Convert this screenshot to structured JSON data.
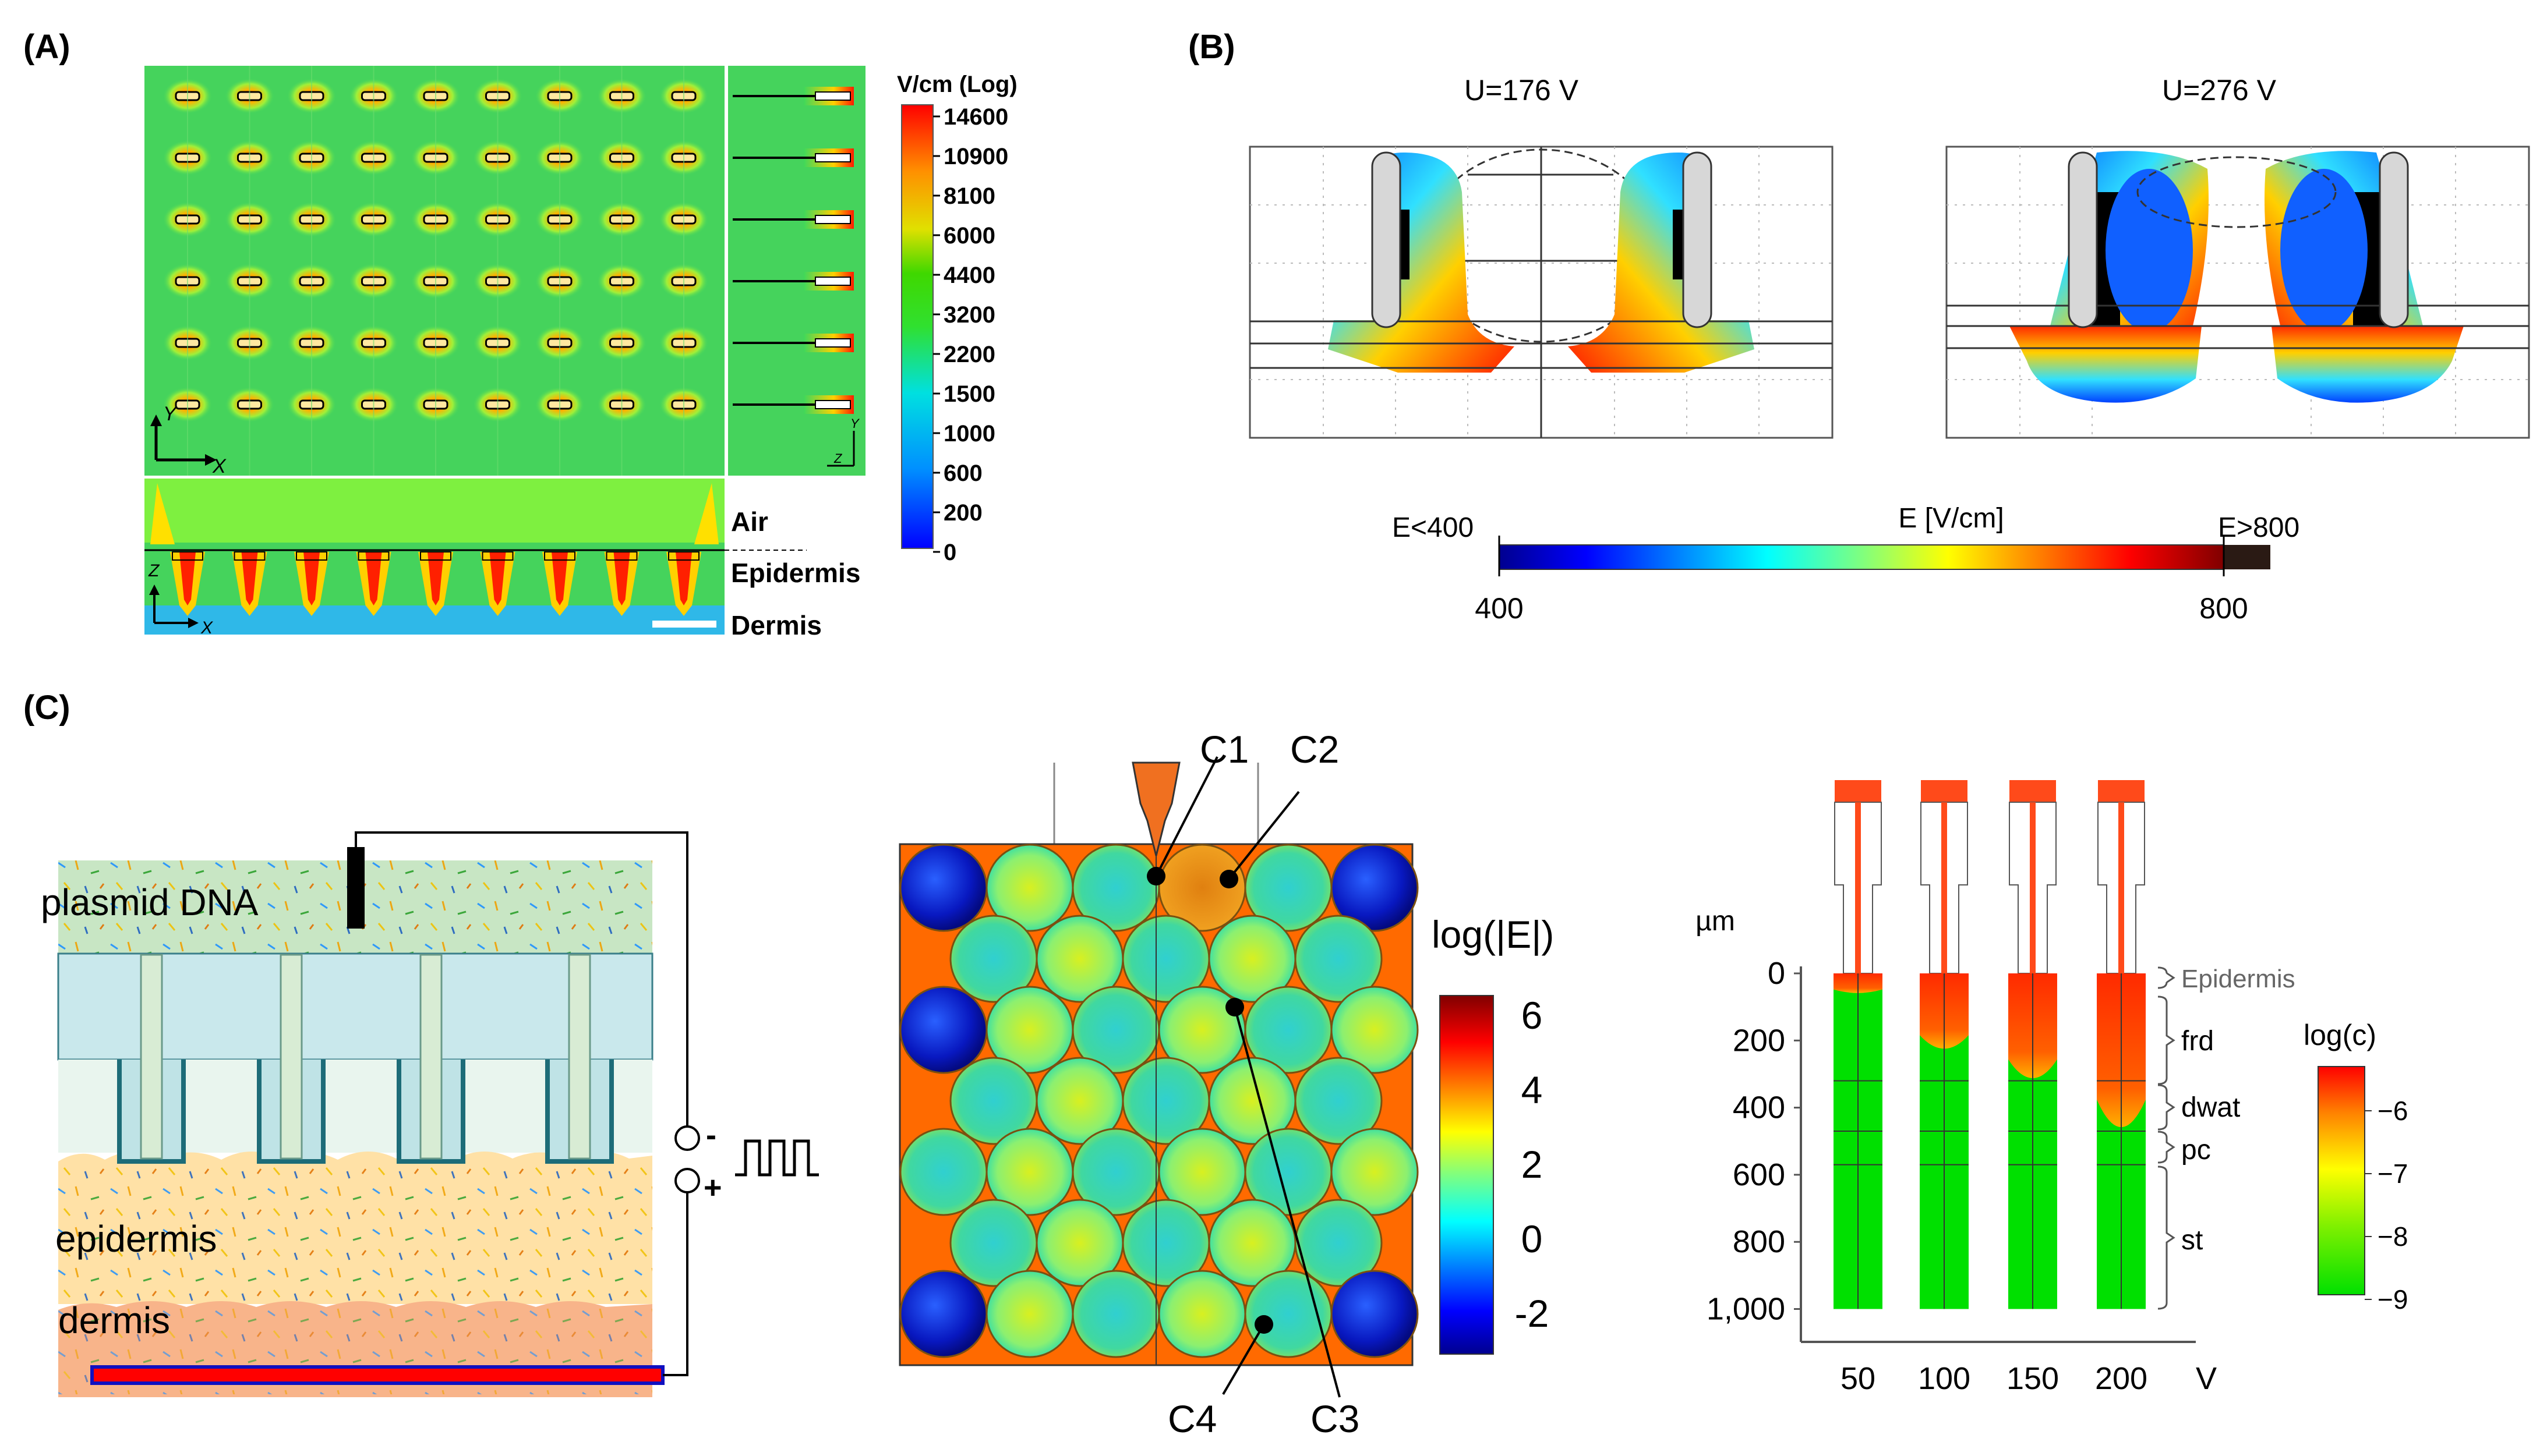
{
  "panels": {
    "a": {
      "label": "(A)",
      "colorbar_title": "V/cm (Log)",
      "colorbar_ticks": [
        "14600",
        "10900",
        "8100",
        "6000",
        "4400",
        "3200",
        "2200",
        "1500",
        "1000",
        "600",
        "200",
        "0"
      ],
      "layers": {
        "air": "Air",
        "epidermis": "Epidermis",
        "dermis": "Dermis"
      },
      "axes": {
        "y": "Y",
        "x": "X",
        "z": "Z"
      }
    },
    "b": {
      "label": "(B)",
      "sim_left_title": "U=176 V",
      "sim_right_title": "U=276 V",
      "colorbar": {
        "title": "E [V/cm]",
        "low_label": "E<400",
        "high_label": "E>800",
        "min_tick": "400",
        "max_tick": "800"
      }
    },
    "c": {
      "label": "(C)",
      "schematic": {
        "plasmid": "plasmid DNA",
        "epidermis": "epidermis",
        "dermis": "dermis",
        "minus": "-",
        "plus": "+"
      },
      "cells": {
        "callouts": [
          "C1",
          "C2",
          "C3",
          "C4"
        ],
        "colorbar_title": "log(|E|)",
        "colorbar_ticks": [
          "6",
          "4",
          "2",
          "0",
          "-2"
        ]
      },
      "concentration": {
        "y_unit": "µm",
        "y_ticks": [
          "0",
          "200",
          "400",
          "600",
          "800",
          "1,000"
        ],
        "x_ticks": [
          "50",
          "100",
          "150",
          "200"
        ],
        "x_unit": "V",
        "layers": [
          "Epidermis",
          "frd",
          "dwat",
          "pc",
          "st"
        ],
        "colorbar_title": "log(c)",
        "colorbar_ticks": [
          "−6",
          "−7",
          "−8",
          "−9"
        ],
        "front_depth_um": [
          60,
          230,
          320,
          470
        ]
      }
    }
  },
  "colors": {
    "red": "#ff1a00",
    "green": "#29e01a",
    "orange": "#ff7a00",
    "blue": "#1020e0"
  }
}
